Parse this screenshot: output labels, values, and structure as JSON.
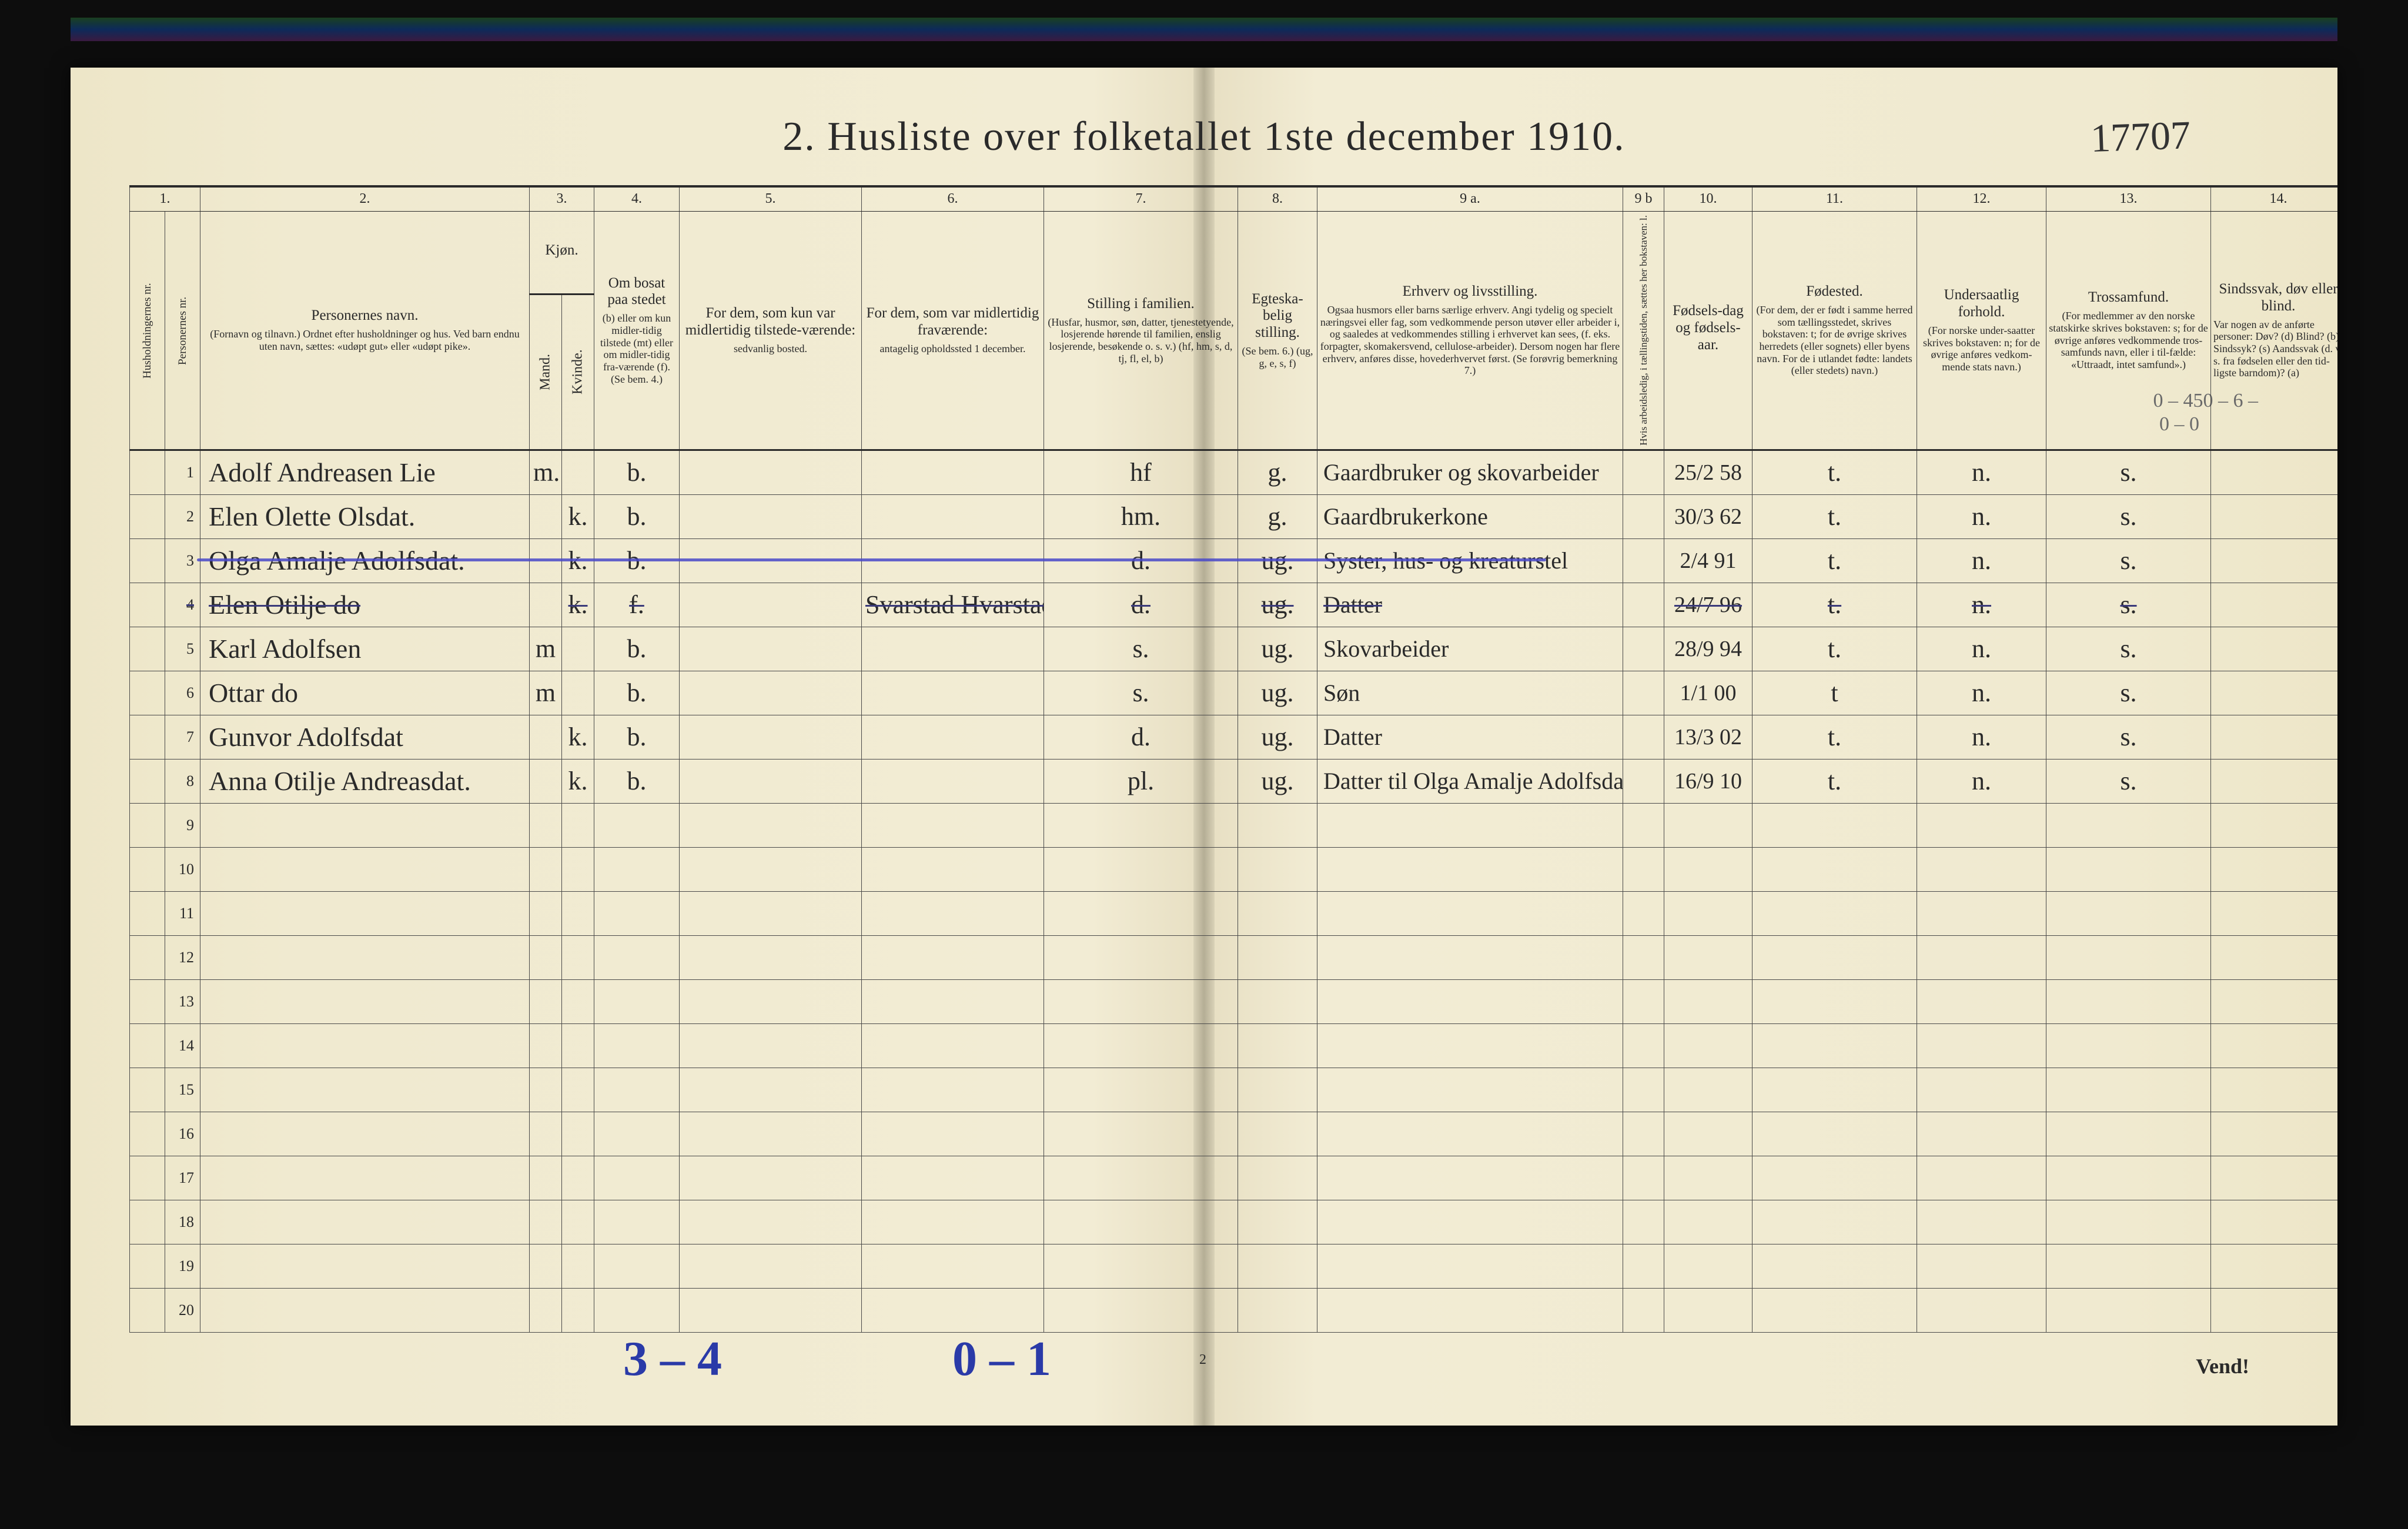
{
  "page": {
    "title": "2.  Husliste over folketallet 1ste december 1910.",
    "ref_number": "17707",
    "footer_pagenum": "2",
    "vend": "Vend!"
  },
  "colors": {
    "paper": "#f0ead0",
    "ink": "#2a2a2a",
    "rule": "#4a4a4a",
    "blue": "#4a4ac8",
    "annot_blue": "#2a3aa8",
    "pencil": "#6a6a6a"
  },
  "columns": {
    "numbers": [
      "1.",
      "2.",
      "3.",
      "4.",
      "5.",
      "6.",
      "7.",
      "8.",
      "9 a.",
      "9 b",
      "10.",
      "11.",
      "12.",
      "13.",
      "14."
    ],
    "c1a": "Husholdningernes nr.",
    "c1b": "Personernes nr.",
    "c2": {
      "h": "Personernes navn.",
      "s": "(Fornavn og tilnavn.)\nOrdnet efter husholdninger og hus.\nVed barn endnu uten navn, sættes: «udøpt gut» eller «udøpt pike»."
    },
    "c3": {
      "h": "Kjøn.",
      "m": "Mand.",
      "k": "Kvinde.",
      "mk": "m.  k."
    },
    "c4": {
      "h": "Om bosat paa stedet",
      "s": "(b) eller om kun midler-tidig tilstede (mt) eller om midler-tidig fra-værende (f). (Se bem. 4.)"
    },
    "c5": {
      "h": "For dem, som kun var midlertidig tilstede-værende:",
      "s": "sedvanlig bosted."
    },
    "c6": {
      "h": "For dem, som var midlertidig fraværende:",
      "s": "antagelig opholdssted 1 december."
    },
    "c7": {
      "h": "Stilling i familien.",
      "s": "(Husfar, husmor, søn, datter, tjenestetyende, losjerende hørende til familien, enslig losjerende, besøkende o. s. v.)\n(hf, hm, s, d, tj, fl, el, b)"
    },
    "c8": {
      "h": "Egteska-belig stilling.",
      "s": "(Se bem. 6.)\n(ug, g, e, s, f)"
    },
    "c9a": {
      "h": "Erhverv og livsstilling.",
      "s": "Ogsaa husmors eller barns særlige erhverv. Angi tydelig og specielt næringsvei eller fag, som vedkommende person utøver eller arbeider i, og saaledes at vedkommendes stilling i erhvervet kan sees, (f. eks. forpagter, skomakersvend, cellulose-arbeider). Dersom nogen har flere erhverv, anføres disse, hovederhvervet først.\n(Se forøvrig bemerkning 7.)"
    },
    "c9b": "Hvis arbeidsledig, i tællingstiden, sættes her bokstaven: l.",
    "c10": {
      "h": "Fødsels-dag og fødsels-aar."
    },
    "c11": {
      "h": "Fødested.",
      "s": "(For dem, der er født i samme herred som tællingsstedet, skrives bokstaven: t; for de øvrige skrives herredets (eller sognets) eller byens navn. For de i utlandet fødte: landets (eller stedets) navn.)"
    },
    "c12": {
      "h": "Undersaatlig forhold.",
      "s": "(For norske under-saatter skrives bokstaven: n; for de øvrige anføres vedkom-mende stats navn.)"
    },
    "c13": {
      "h": "Trossamfund.",
      "s": "(For medlemmer av den norske statskirke skrives bokstaven: s; for de øvrige anføres vedkommende tros-samfunds navn, eller i til-fælde: «Uttraadt, intet samfund».)"
    },
    "c14": {
      "h": "Sindssvak, døv eller blind.",
      "s": "Var nogen av de anførte personer:\nDøv?        (d)\nBlind?       (b)\nSindssyk?  (s)\nAandssvak (d. v. s. fra fødselen eller den tid-ligste barndom)?  (a)"
    }
  },
  "rows": [
    {
      "nr": "1",
      "name": "Adolf Andreasen Lie",
      "sex_m": "m.",
      "sex_k": "",
      "res": "b.",
      "tmp": "",
      "away": "",
      "fam": "hf",
      "mar": "g.",
      "occ": "Gaardbruker og skovarbeider",
      "led": "",
      "dob": "25/2 58",
      "bplace": "t.",
      "nat": "n.",
      "rel": "s.",
      "dis": ""
    },
    {
      "nr": "2",
      "name": "Elen Olette Olsdat.",
      "sex_m": "",
      "sex_k": "k.",
      "res": "b.",
      "tmp": "",
      "away": "",
      "fam": "hm.",
      "mar": "g.",
      "occ": "Gaardbrukerkone",
      "led": "",
      "dob": "30/3 62",
      "bplace": "t.",
      "nat": "n.",
      "rel": "s.",
      "dis": ""
    },
    {
      "nr": "3",
      "name": "Olga Amalje Adolfsdat.",
      "sex_m": "",
      "sex_k": "k.",
      "res": "b.",
      "tmp": "",
      "away": "",
      "fam": "d.",
      "mar": "ug.",
      "occ": "Syster, hus- og kreaturstel",
      "led": "",
      "dob": "2/4 91",
      "bplace": "t.",
      "nat": "n.",
      "rel": "s.",
      "dis": ""
    },
    {
      "nr": "4",
      "name": "Elen Otilje   do",
      "sex_m": "",
      "sex_k": "k.",
      "res": "f.",
      "tmp": "",
      "away": "Svarstad Hvarstad",
      "fam": "d.",
      "mar": "ug.",
      "occ": "Datter",
      "led": "",
      "dob": "24/7 96",
      "bplace": "t.",
      "nat": "n.",
      "rel": "s.",
      "dis": "",
      "struck": true
    },
    {
      "nr": "5",
      "name": "Karl Adolfsen",
      "sex_m": "m",
      "sex_k": "",
      "res": "b.",
      "tmp": "",
      "away": "",
      "fam": "s.",
      "mar": "ug.",
      "occ": "Skovarbeider",
      "led": "",
      "dob": "28/9 94",
      "bplace": "t.",
      "nat": "n.",
      "rel": "s.",
      "dis": ""
    },
    {
      "nr": "6",
      "name": "Ottar    do",
      "sex_m": "m",
      "sex_k": "",
      "res": "b.",
      "tmp": "",
      "away": "",
      "fam": "s.",
      "mar": "ug.",
      "occ": "Søn",
      "led": "",
      "dob": "1/1 00",
      "bplace": "t",
      "nat": "n.",
      "rel": "s.",
      "dis": ""
    },
    {
      "nr": "7",
      "name": "Gunvor Adolfsdat",
      "sex_m": "",
      "sex_k": "k.",
      "res": "b.",
      "tmp": "",
      "away": "",
      "fam": "d.",
      "mar": "ug.",
      "occ": "Datter",
      "led": "",
      "dob": "13/3 02",
      "bplace": "t.",
      "nat": "n.",
      "rel": "s.",
      "dis": ""
    },
    {
      "nr": "8",
      "name": "Anna Otilje Andreasdat.",
      "sex_m": "",
      "sex_k": "k.",
      "res": "b.",
      "tmp": "",
      "away": "",
      "fam": "pl.",
      "mar": "ug.",
      "occ": "Datter til Olga Amalje Adolfsdat.",
      "led": "",
      "dob": "16/9 10",
      "bplace": "t.",
      "nat": "n.",
      "rel": "s.",
      "dis": ""
    }
  ],
  "empty_rows": [
    "9",
    "10",
    "11",
    "12",
    "13",
    "14",
    "15",
    "16",
    "17",
    "18",
    "19",
    "20"
  ],
  "annotations": {
    "blue_1": "3 – 4",
    "blue_2": "0 – 1",
    "pencil_1": "0 – 450 – 6 –",
    "pencil_2": "0  –  0"
  }
}
